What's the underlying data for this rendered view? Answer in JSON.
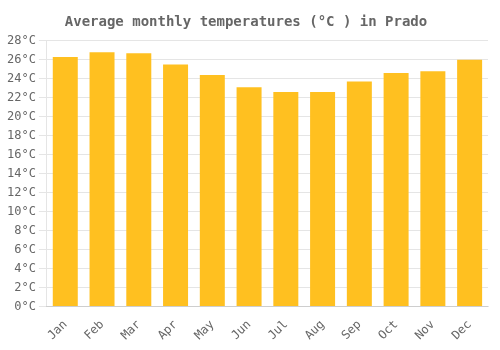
{
  "chart_data": {
    "type": "bar",
    "title": "Average monthly temperatures (°C ) in Prado",
    "categories": [
      "Jan",
      "Feb",
      "Mar",
      "Apr",
      "May",
      "Jun",
      "Jul",
      "Aug",
      "Sep",
      "Oct",
      "Nov",
      "Dec"
    ],
    "values": [
      26.3,
      26.8,
      26.7,
      25.5,
      24.4,
      23.1,
      22.6,
      22.6,
      23.7,
      24.6,
      24.8,
      26.0
    ],
    "color": "#FFC020",
    "ylim": [
      0,
      28
    ],
    "yticks": [
      {
        "value": 0,
        "label": "0°C"
      },
      {
        "value": 2,
        "label": "2°C"
      },
      {
        "value": 4,
        "label": "4°C"
      },
      {
        "value": 6,
        "label": "6°C"
      },
      {
        "value": 8,
        "label": "8°C"
      },
      {
        "value": 10,
        "label": "10°C"
      },
      {
        "value": 12,
        "label": "12°C"
      },
      {
        "value": 14,
        "label": "14°C"
      },
      {
        "value": 16,
        "label": "16°C"
      },
      {
        "value": 18,
        "label": "18°C"
      },
      {
        "value": 20,
        "label": "20°C"
      },
      {
        "value": 22,
        "label": "22°C"
      },
      {
        "value": 24,
        "label": "24°C"
      },
      {
        "value": 26,
        "label": "26°C"
      },
      {
        "value": 28,
        "label": "28°C"
      }
    ],
    "grid": true
  }
}
